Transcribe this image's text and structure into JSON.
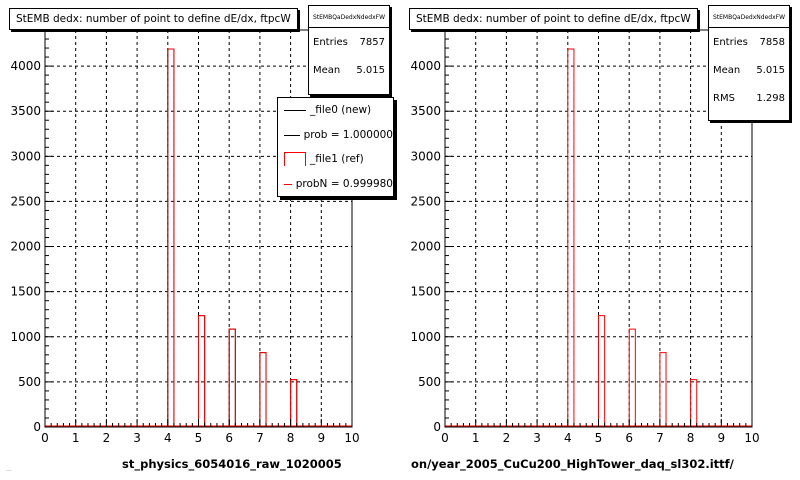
{
  "chart_data": [
    {
      "type": "bar",
      "title": "StEMB dedx: number of point to define dE/dx, ftpcW",
      "xlabel": "st_physics_6054016_raw_1020005",
      "ylabel": "",
      "xlim": [
        0,
        10
      ],
      "ylim": [
        0,
        4400
      ],
      "x_ticks": [
        "0",
        "1",
        "2",
        "3",
        "4",
        "5",
        "6",
        "7",
        "8",
        "9",
        "10"
      ],
      "y_ticks": [
        "0",
        "500",
        "1000",
        "1500",
        "2000",
        "2500",
        "3000",
        "3500",
        "4000"
      ],
      "grid": true,
      "bin_width": 0.2,
      "series": [
        {
          "name": "_file0 (new)",
          "color": "#000000",
          "bins": [
            {
              "x": 4.0,
              "value": 4190
            },
            {
              "x": 5.0,
              "value": 1235
            },
            {
              "x": 6.0,
              "value": 1085
            },
            {
              "x": 7.0,
              "value": 825
            },
            {
              "x": 8.0,
              "value": 525
            }
          ]
        },
        {
          "name": "_file1 (ref)",
          "color": "#ff0000",
          "bins": [
            {
              "x": 4.0,
              "value": 4190
            },
            {
              "x": 5.0,
              "value": 1235
            },
            {
              "x": 6.0,
              "value": 1085
            },
            {
              "x": 7.0,
              "value": 825
            },
            {
              "x": 8.0,
              "value": 525
            }
          ]
        }
      ],
      "stats": {
        "name": "StEMBQaDedxNdedxFW",
        "entries_label": "Entries",
        "entries": "7857",
        "mean_label": "Mean",
        "mean": "5.015"
      },
      "legend": [
        {
          "label": "_file0 (new)",
          "style": "line",
          "color": "#000000"
        },
        {
          "label": "prob = 1.000000",
          "style": "line",
          "color": "#000000"
        },
        {
          "label": "_file1 (ref)",
          "style": "bar",
          "color": "#ff0000"
        },
        {
          "label": "probN = 0.999980",
          "style": "line",
          "color": "#ff0000"
        }
      ]
    },
    {
      "type": "bar",
      "title": "StEMB dedx: number of point to define dE/dx, ftpcW",
      "xlabel": "on/year_2005_CuCu200_HighTower_daq_sl302.ittf/",
      "ylabel": "",
      "xlim": [
        0,
        10
      ],
      "ylim": [
        0,
        4400
      ],
      "x_ticks": [
        "0",
        "1",
        "2",
        "3",
        "4",
        "5",
        "6",
        "7",
        "8",
        "9",
        "10"
      ],
      "y_ticks": [
        "0",
        "500",
        "1000",
        "1500",
        "2000",
        "2500",
        "3000",
        "3500",
        "4000"
      ],
      "grid": true,
      "bin_width": 0.2,
      "series": [
        {
          "name": "",
          "color": "#ff0000",
          "bins": [
            {
              "x": 4.0,
              "value": 4190
            },
            {
              "x": 5.0,
              "value": 1235
            },
            {
              "x": 6.0,
              "value": 1085
            },
            {
              "x": 7.0,
              "value": 825
            },
            {
              "x": 8.0,
              "value": 525
            }
          ]
        }
      ],
      "stats": {
        "name": "StEMBQaDedxNdedxFW",
        "entries_label": "Entries",
        "entries": "7858",
        "mean_label": "Mean",
        "mean": "5.015",
        "rms_label": "RMS",
        "rms": "1.298"
      }
    }
  ],
  "footer": "..."
}
